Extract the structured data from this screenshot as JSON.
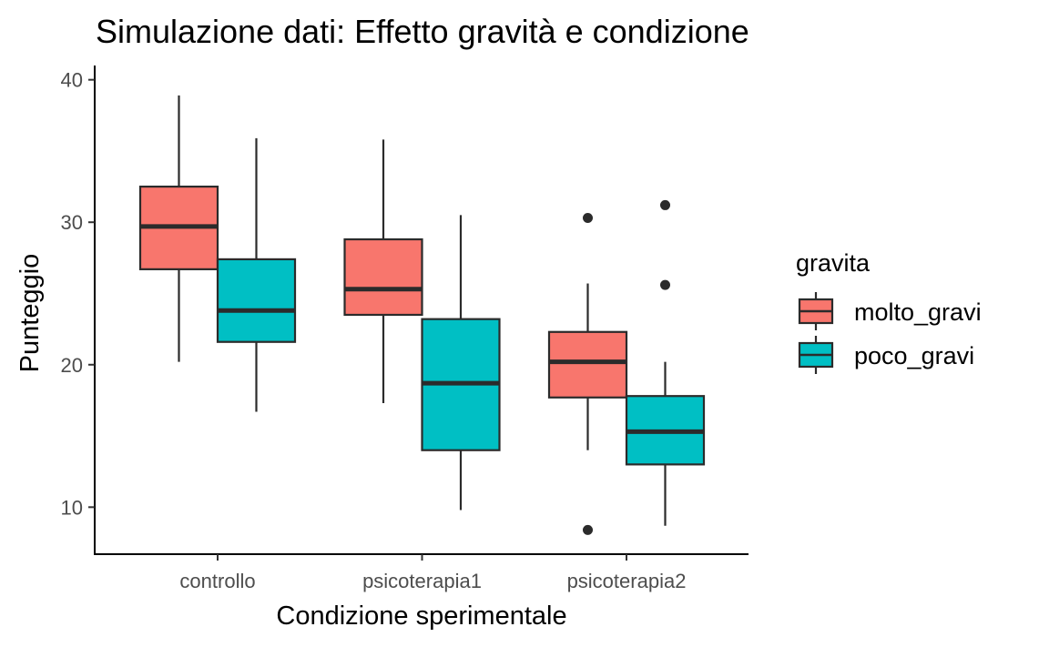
{
  "chart_data": {
    "type": "boxplot",
    "title": "Simulazione dati: Effetto gravità e condizione",
    "xlabel": "Condizione sperimentale",
    "ylabel": "Punteggio",
    "categories": [
      "controllo",
      "psicoterapia1",
      "psicoterapia2"
    ],
    "ylim": [
      6.7,
      41
    ],
    "yticks": [
      10,
      20,
      30,
      40
    ],
    "grid": false,
    "legend": {
      "title": "gravita",
      "position": "right"
    },
    "series": [
      {
        "name": "molto_gravi",
        "color": "#F8766D",
        "boxes": [
          {
            "category": "controllo",
            "min": 20.2,
            "q1": 26.7,
            "median": 29.7,
            "q3": 32.5,
            "max": 38.9,
            "outliers": []
          },
          {
            "category": "psicoterapia1",
            "min": 17.3,
            "q1": 23.5,
            "median": 25.3,
            "q3": 28.8,
            "max": 35.8,
            "outliers": []
          },
          {
            "category": "psicoterapia2",
            "min": 14.0,
            "q1": 17.7,
            "median": 20.2,
            "q3": 22.3,
            "max": 25.7,
            "outliers": [
              30.3,
              8.4
            ]
          }
        ]
      },
      {
        "name": "poco_gravi",
        "color": "#00BFC4",
        "boxes": [
          {
            "category": "controllo",
            "min": 16.7,
            "q1": 21.6,
            "median": 23.8,
            "q3": 27.4,
            "max": 35.9,
            "outliers": []
          },
          {
            "category": "psicoterapia1",
            "min": 9.8,
            "q1": 14.0,
            "median": 18.7,
            "q3": 23.2,
            "max": 30.5,
            "outliers": []
          },
          {
            "category": "psicoterapia2",
            "min": 8.7,
            "q1": 13.0,
            "median": 15.3,
            "q3": 17.8,
            "max": 20.2,
            "outliers": [
              31.2,
              25.6
            ]
          }
        ]
      }
    ]
  }
}
